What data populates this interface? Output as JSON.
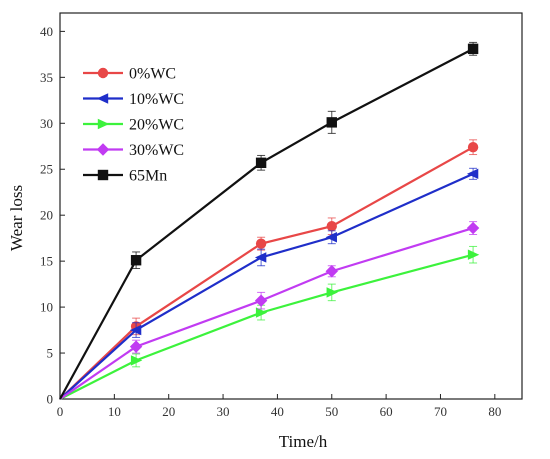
{
  "chart_data": {
    "type": "line",
    "xlabel": "Time/h",
    "ylabel": "Wear loss",
    "xlim": [
      0,
      85
    ],
    "ylim": [
      0,
      42
    ],
    "x_ticks": [
      0,
      10,
      20,
      30,
      40,
      50,
      60,
      70,
      80
    ],
    "y_ticks": [
      0,
      5,
      10,
      15,
      20,
      25,
      30,
      35,
      40
    ],
    "grid": false,
    "legend_position": "top-left",
    "x": [
      0,
      14,
      37,
      50,
      76
    ],
    "series": [
      {
        "name": "0%WC",
        "color": "#e84747",
        "marker": "circle",
        "values": [
          0,
          7.9,
          16.9,
          18.8,
          27.4
        ],
        "errors": [
          0,
          0.9,
          0.7,
          0.9,
          0.8
        ]
      },
      {
        "name": "10%WC",
        "color": "#1f2ec9",
        "marker": "triangle-left",
        "values": [
          0,
          7.5,
          15.4,
          17.6,
          24.5
        ],
        "errors": [
          0,
          0.8,
          0.9,
          0.7,
          0.6
        ]
      },
      {
        "name": "20%WC",
        "color": "#3cf23c",
        "marker": "triangle-right",
        "values": [
          0,
          4.2,
          9.4,
          11.6,
          15.7
        ],
        "errors": [
          0,
          0.7,
          0.8,
          0.9,
          0.9
        ]
      },
      {
        "name": "30%WC",
        "color": "#c13bf2",
        "marker": "diamond",
        "values": [
          0,
          5.7,
          10.7,
          13.9,
          18.6
        ],
        "errors": [
          0,
          0.7,
          0.9,
          0.6,
          0.7
        ]
      },
      {
        "name": "65Mn",
        "color": "#111111",
        "marker": "square",
        "values": [
          0,
          15.1,
          25.7,
          30.1,
          38.1
        ],
        "errors": [
          0,
          0.9,
          0.8,
          1.2,
          0.7
        ]
      }
    ]
  }
}
